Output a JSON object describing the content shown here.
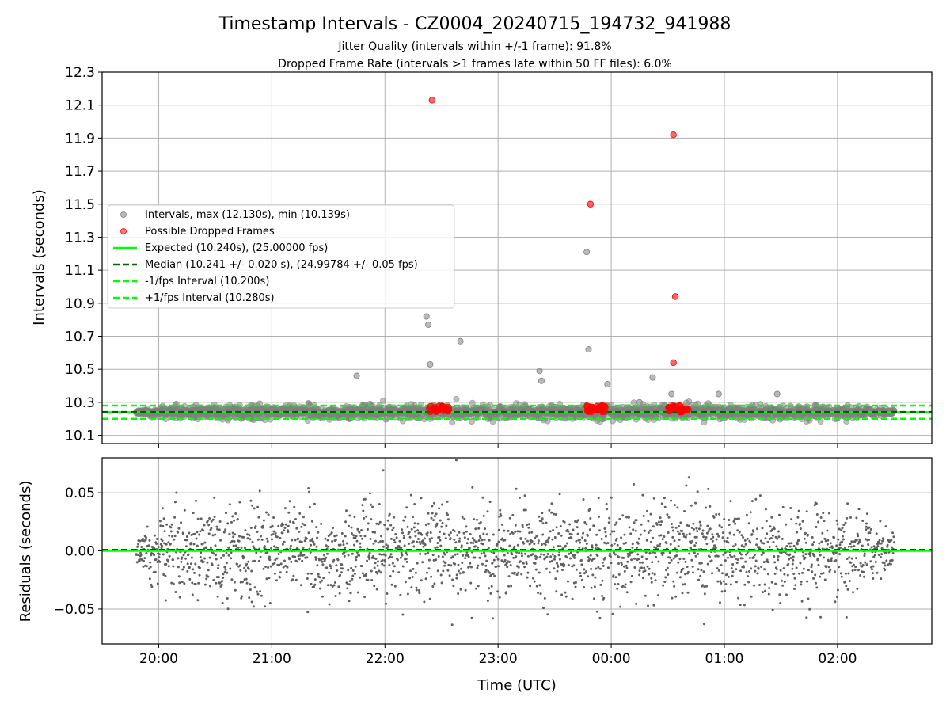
{
  "figure": {
    "title": "Timestamp Intervals - CZ0004_20240715_194732_941988",
    "subtitle_1": "Jitter Quality (intervals within +/-1 frame): 91.8%",
    "subtitle_2": "Dropped Frame Rate (intervals >1 frames late within 50 FF files): 6.0%",
    "xlabel": "Time (UTC)"
  },
  "colors": {
    "interval_points": "#808080",
    "dropped_points": "#ff0000",
    "expected_line": "#00ff00",
    "median_line": "#006400",
    "fps_interval_lines": "#00ff00",
    "residual_points": "#606060",
    "grid": "#b0b0b0"
  },
  "chart_data": [
    {
      "type": "scatter",
      "panel": "intervals",
      "ylabel": "Intervals (seconds)",
      "x_range": [
        "19:30",
        "02:50"
      ],
      "x_ticks": [
        "20:00",
        "21:00",
        "22:00",
        "23:00",
        "00:00",
        "01:00",
        "02:00"
      ],
      "x_tick_labels_shown": false,
      "ylim": [
        10.05,
        12.3
      ],
      "y_ticks": [
        "10.1",
        "10.3",
        "10.5",
        "10.7",
        "10.9",
        "11.1",
        "11.3",
        "11.5",
        "11.7",
        "11.9",
        "12.1",
        "12.3"
      ],
      "grid": true,
      "time_span": [
        "19:48",
        "02:30"
      ],
      "sample_count": 2200,
      "legend_position": "center-left",
      "legend": [
        {
          "label": "Intervals, max (12.130s), min (10.139s)",
          "kind": "marker",
          "color": "#808080"
        },
        {
          "label": "Possible Dropped Frames",
          "kind": "marker",
          "color": "#ff0000"
        },
        {
          "label": "Expected (10.240s), (25.00000 fps)",
          "kind": "solid",
          "color": "#00ff00"
        },
        {
          "label": "Median (10.241 +/- 0.020 s), (24.99784 +/- 0.05 fps)",
          "kind": "dashed",
          "color": "#006400"
        },
        {
          "label": "-1/fps Interval (10.200s)",
          "kind": "dashed",
          "color": "#00ff00"
        },
        {
          "label": "+1/fps Interval (10.280s)",
          "kind": "dashed",
          "color": "#00ff00"
        }
      ],
      "reference_lines": {
        "expected": 10.24,
        "median": 10.241,
        "minus_one_frame": 10.2,
        "plus_one_frame": 10.28
      },
      "outliers": [
        {
          "x": "22:22",
          "y": 10.82
        },
        {
          "x": "22:23",
          "y": 10.77
        },
        {
          "x": "22:24",
          "y": 10.53
        },
        {
          "x": "22:40",
          "y": 10.67
        },
        {
          "x": "21:45",
          "y": 10.46
        },
        {
          "x": "23:22",
          "y": 10.49
        },
        {
          "x": "23:23",
          "y": 10.43
        },
        {
          "x": "23:47",
          "y": 11.21
        },
        {
          "x": "23:48",
          "y": 10.62
        },
        {
          "x": "00:22",
          "y": 10.45
        },
        {
          "x": "23:58",
          "y": 10.41
        },
        {
          "x": "00:32",
          "y": 10.35
        },
        {
          "x": "01:28",
          "y": 10.35
        },
        {
          "x": "00:15",
          "y": 10.3
        },
        {
          "x": "00:57",
          "y": 10.35
        }
      ],
      "dropped_frames": [
        {
          "x": "22:25",
          "y": 12.13
        },
        {
          "x": "23:49",
          "y": 11.5
        },
        {
          "x": "00:33",
          "y": 11.92
        },
        {
          "x": "00:34",
          "y": 10.94
        },
        {
          "x": "00:33",
          "y": 10.54
        }
      ],
      "dropped_clusters": [
        {
          "start": "22:23",
          "end": "22:34",
          "y": 10.26
        },
        {
          "start": "23:47",
          "end": "23:57",
          "y": 10.26
        },
        {
          "start": "00:30",
          "end": "00:41",
          "y": 10.26
        }
      ]
    },
    {
      "type": "scatter",
      "panel": "residuals",
      "ylabel": "Residuals (seconds)",
      "xlabel": "Time (UTC)",
      "x_range": [
        "19:30",
        "02:50"
      ],
      "x_ticks": [
        "20:00",
        "21:00",
        "22:00",
        "23:00",
        "00:00",
        "01:00",
        "02:00"
      ],
      "ylim": [
        -0.08,
        0.08
      ],
      "y_ticks": [
        "0.05",
        "0.00",
        "−0.05"
      ],
      "y_tick_values": [
        0.05,
        0.0,
        -0.05
      ],
      "grid": true,
      "time_span": [
        "19:48",
        "02:30"
      ],
      "sample_count": 2200,
      "spread": 0.025,
      "zero_lines": {
        "expected": 0.0,
        "median": 0.001
      }
    }
  ]
}
